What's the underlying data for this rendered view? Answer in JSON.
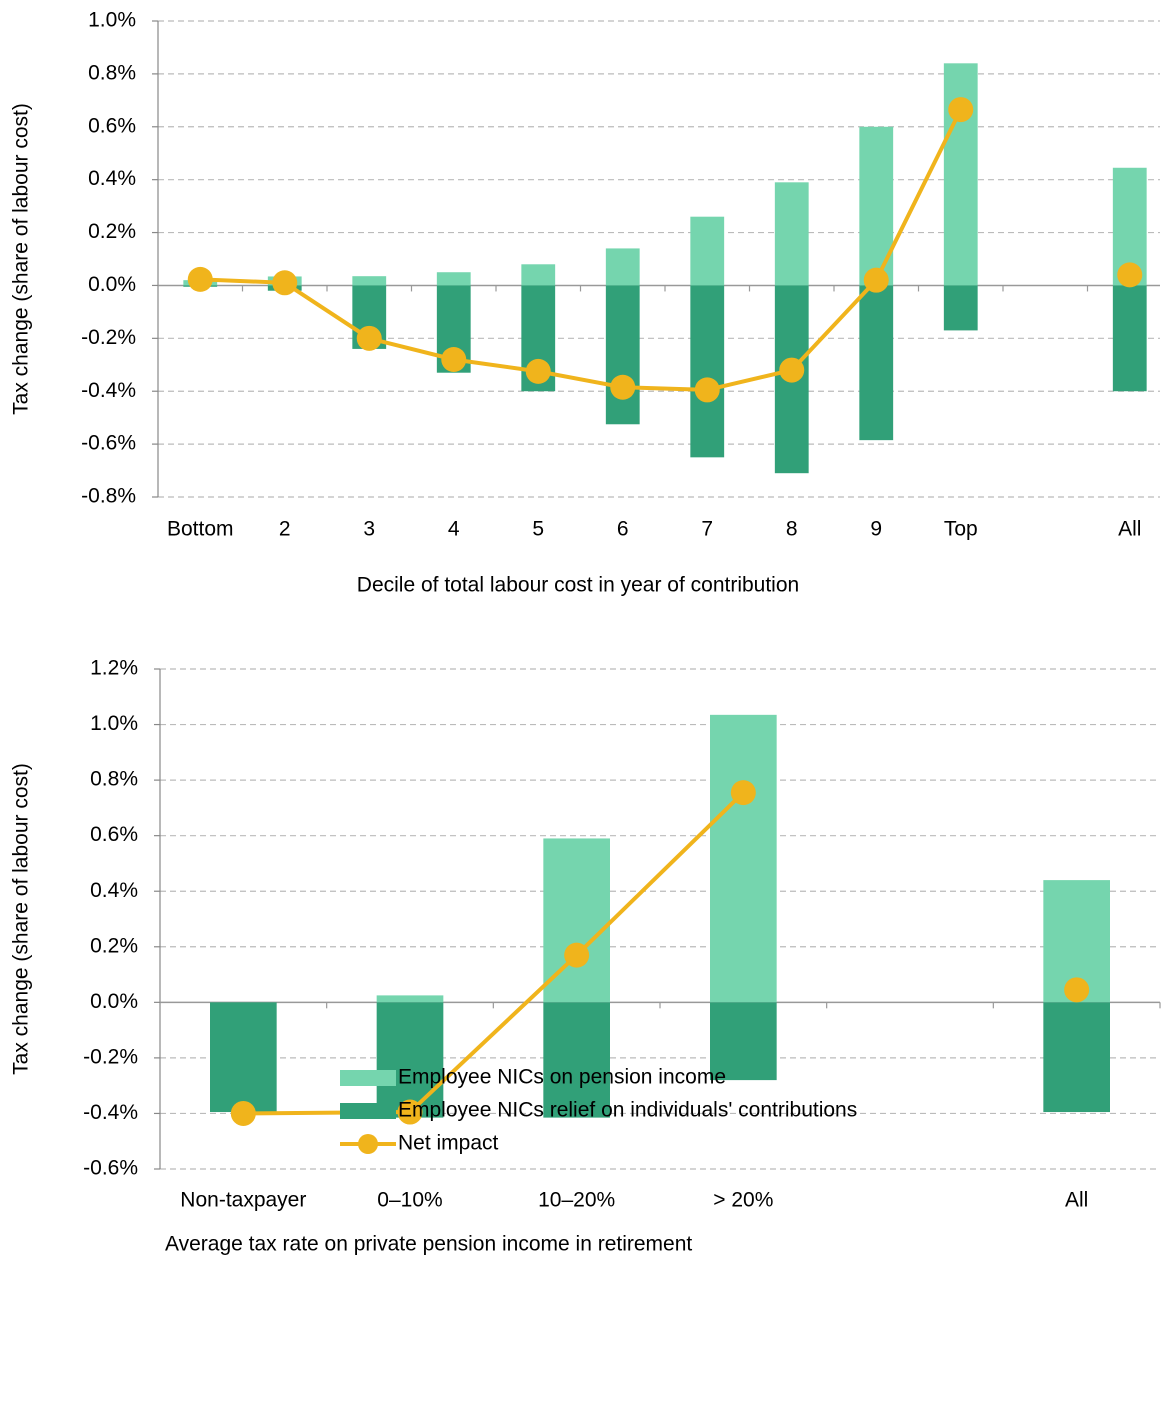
{
  "chart_data": [
    {
      "type": "bar",
      "categories": [
        "Bottom",
        "2",
        "3",
        "4",
        "5",
        "6",
        "7",
        "8",
        "9",
        "Top",
        null,
        "All"
      ],
      "series": [
        {
          "name": "Employee NICs on pension income",
          "type": "bar",
          "color": "#75d5ae",
          "values": [
            0.02,
            0.034,
            0.035,
            0.05,
            0.08,
            0.14,
            0.26,
            0.39,
            0.6,
            0.84,
            null,
            0.445
          ]
        },
        {
          "name": "Employee NICs relief on individuals' contributions",
          "type": "bar",
          "color": "#31a078",
          "values": [
            -0.005,
            -0.02,
            -0.24,
            -0.33,
            -0.4,
            -0.525,
            -0.65,
            -0.71,
            -0.585,
            -0.17,
            null,
            -0.4
          ]
        },
        {
          "name": "Net impact",
          "type": "line",
          "color": "#f0b41c",
          "values": [
            0.023,
            0.01,
            -0.2,
            -0.28,
            -0.325,
            -0.385,
            -0.395,
            -0.32,
            0.02,
            0.665,
            null,
            0.04
          ]
        }
      ],
      "xlabel": "Decile of total labour cost in year of contribution",
      "ylabel": "Tax change (share of labour cost)",
      "ylim": [
        -0.8,
        1.0
      ],
      "yticks": [
        {
          "value": -0.8,
          "label": "-0.8%"
        },
        {
          "value": -0.6,
          "label": "-0.6%"
        },
        {
          "value": -0.4,
          "label": "-0.4%"
        },
        {
          "value": -0.2,
          "label": "-0.2%"
        },
        {
          "value": 0,
          "label": "0.0%"
        },
        {
          "value": 0.2,
          "label": "0.2%"
        },
        {
          "value": 0.4,
          "label": "0.4%"
        },
        {
          "value": 0.6,
          "label": "0.6%"
        },
        {
          "value": 0.8,
          "label": "0.8%"
        },
        {
          "value": 1.0,
          "label": "1.0%"
        }
      ],
      "grid": true
    },
    {
      "type": "bar",
      "categories": [
        "Non-taxpayer",
        "0–10%",
        "10–20%",
        "> 20%",
        null,
        "All"
      ],
      "series": [
        {
          "name": "Employee NICs on pension income",
          "type": "bar",
          "color": "#75d5ae",
          "values": [
            0,
            0.025,
            0.59,
            1.035,
            null,
            0.44
          ]
        },
        {
          "name": "Employee NICs relief on individuals' contributions",
          "type": "bar",
          "color": "#31a078",
          "values": [
            -0.395,
            -0.415,
            -0.415,
            -0.28,
            null,
            -0.395
          ]
        },
        {
          "name": "Net impact",
          "type": "line",
          "color": "#f0b41c",
          "values": [
            -0.4,
            -0.395,
            0.17,
            0.755,
            null,
            0.045
          ]
        }
      ],
      "xlabel": "Average tax rate on private pension income in retirement",
      "ylabel": "Tax change (share of labour cost)",
      "ylim": [
        -0.6,
        1.2
      ],
      "yticks": [
        {
          "value": -0.6,
          "label": "-0.6%"
        },
        {
          "value": -0.4,
          "label": "-0.4%"
        },
        {
          "value": -0.2,
          "label": "-0.2%"
        },
        {
          "value": 0,
          "label": "0.0%"
        },
        {
          "value": 0.2,
          "label": "0.2%"
        },
        {
          "value": 0.4,
          "label": "0.4%"
        },
        {
          "value": 0.6,
          "label": "0.6%"
        },
        {
          "value": 0.8,
          "label": "0.8%"
        },
        {
          "value": 1.0,
          "label": "1.0%"
        },
        {
          "value": 1.2,
          "label": "1.2%"
        }
      ],
      "grid": true,
      "legend": "bottom"
    }
  ]
}
